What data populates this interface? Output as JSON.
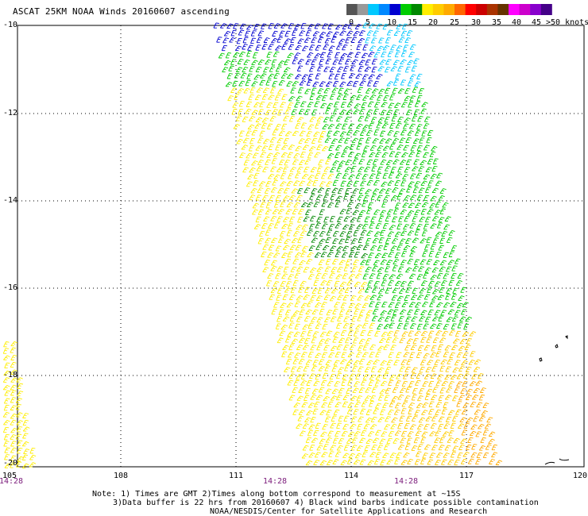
{
  "title": "ASCAT 25KM NOAA Winds 20160607 ascending",
  "scale": {
    "labels": [
      "0",
      "5",
      "10",
      "15",
      "20",
      "25",
      "30",
      "35",
      "40",
      "45",
      ">50 knots"
    ],
    "colors": [
      "#555555",
      "#999999",
      "#00c8ff",
      "#0088ff",
      "#0000d0",
      "#00cc00",
      "#008800",
      "#ffee00",
      "#ffcc00",
      "#ffaa00",
      "#ff6600",
      "#ff0000",
      "#cc0000",
      "#aa3300",
      "#663300",
      "#ff00ff",
      "#cc00cc",
      "#8800cc",
      "#440088"
    ]
  },
  "map": {
    "lat_labels": [
      "-10",
      "-12",
      "-14",
      "-16",
      "-18",
      "-20"
    ],
    "lon_labels": [
      "105",
      "108",
      "111",
      "114",
      "117",
      "120"
    ],
    "time_labels": [
      "14:28",
      "14:28",
      "14:28"
    ],
    "gridline_color": "#000000"
  },
  "notes": {
    "line1": "Note: 1) Times are GMT 2)Times along bottom correspond to measurement at ~15S",
    "line2": "3)Data buffer is 22 hrs from 20160607 4) Black wind barbs indicate possible contamination",
    "line3": "NOAA/NESDIS/Center for Satellite Applications and Research"
  }
}
